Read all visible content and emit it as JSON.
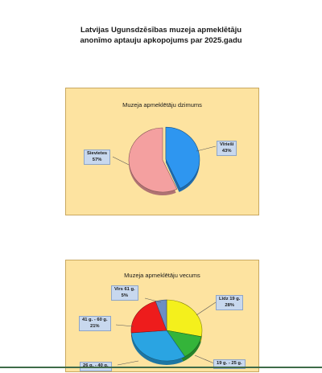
{
  "document": {
    "title_line1": "Latvijas Ugunsdzēsības muzeja apmeklētāju",
    "title_line2": "anonīmo aptauju apkopojums par 2025.gadu"
  },
  "chart_data": [
    {
      "type": "pie",
      "title": "Muzeja apmeklētāju dzimums",
      "slices": [
        {
          "name": "Vīrieši",
          "value": 43,
          "label": "43%",
          "color": "#2e96f0"
        },
        {
          "name": "Sievietes",
          "value": 57,
          "label": "57%",
          "color": "#f4a0a0"
        }
      ]
    },
    {
      "type": "pie",
      "title": "Muzeja apmeklētāju vecums",
      "slices": [
        {
          "name": "Līdz 19 g.",
          "value": 28,
          "label": "28%",
          "color": "#f4f01c"
        },
        {
          "name": "19 g. - 25 g.",
          "value": 13,
          "color": "#34b43a"
        },
        {
          "name": "26 g. - 40 g.",
          "value": 32,
          "color": "#2aa4e2"
        },
        {
          "name": "41 g. - 60 g.",
          "value": 21,
          "label": "21%",
          "color": "#ee1c1c"
        },
        {
          "name": "Virs 61 g.",
          "value": 5,
          "label": "5%",
          "color": "#6c8ec4"
        }
      ]
    }
  ]
}
